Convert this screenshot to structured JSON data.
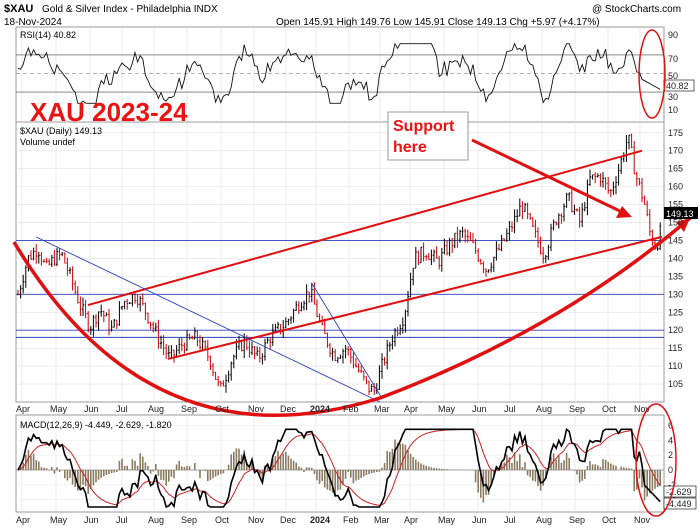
{
  "header": {
    "symbol": "$XAU",
    "name": "Gold & Silver Index - Philadelphia INDX",
    "date": "18-Nov-2024",
    "ohlc": "Open 145.91  High 149.76  Low 145.91  Close 149.13  Chg +5.97 (+4.17%)",
    "watermark": "@ StockCharts.com"
  },
  "annotations": {
    "big_title": "XAU 2023-24",
    "support_line1": "Support",
    "support_line2": "here"
  },
  "rsi": {
    "label": "RSI(14) 40.82",
    "value_tag": "40.82",
    "ticks": [
      "90",
      "70",
      "50",
      "30",
      "10"
    ]
  },
  "price": {
    "label": "$XAU (Daily) 149.13",
    "volume_label": "Volume undef",
    "value_tag": "149.13",
    "ticks": [
      "175",
      "170",
      "165",
      "160",
      "155",
      "150",
      "145",
      "140",
      "135",
      "130",
      "125",
      "120",
      "115",
      "110",
      "105"
    ]
  },
  "macd": {
    "label": "MACD(12,26,9) -4.449, -2.629, -1.820",
    "tags": [
      "-2.629",
      "-4.449"
    ],
    "ticks": [
      "6",
      "4",
      "2",
      "0",
      "-2",
      "-4"
    ]
  },
  "x_labels": [
    "Apr",
    "May",
    "Jun",
    "Jul",
    "Aug",
    "Sep",
    "Oct",
    "Nov",
    "Dec",
    "2024",
    "Feb",
    "Mar",
    "Apr",
    "May",
    "Jun",
    "Jul",
    "Aug",
    "Sep",
    "Oct",
    "Nov"
  ],
  "colors": {
    "bg": "#ffffff",
    "up": "#000000",
    "down": "#cc0000",
    "trend_red": "#e01010",
    "trend_blue": "#2b3fbf",
    "macd": "#000000",
    "signal": "#cc2222",
    "hist": "#8a7a60"
  },
  "chart_data": {
    "type": "line",
    "title": "$XAU Gold & Silver Index - Philadelphia INDX",
    "x": [
      "Apr",
      "May",
      "Jun",
      "Jul",
      "Aug",
      "Sep",
      "Oct",
      "Nov",
      "Dec",
      "2024",
      "Feb",
      "Mar",
      "Apr",
      "May",
      "Jun",
      "Jul",
      "Aug",
      "Sep",
      "Oct",
      "Nov"
    ],
    "series": [
      {
        "name": "$XAU (Daily) 149.13",
        "values": [
          134,
          141,
          122,
          136,
          120,
          114,
          103,
          111,
          118,
          131,
          108,
          102,
          120,
          140,
          138,
          145,
          150,
          153,
          161,
          149
        ]
      }
    ],
    "ylim": [
      100,
      178
    ],
    "rsi_last": 40.82,
    "macd_last": [
      -4.449,
      -2.629,
      -1.82
    ]
  }
}
